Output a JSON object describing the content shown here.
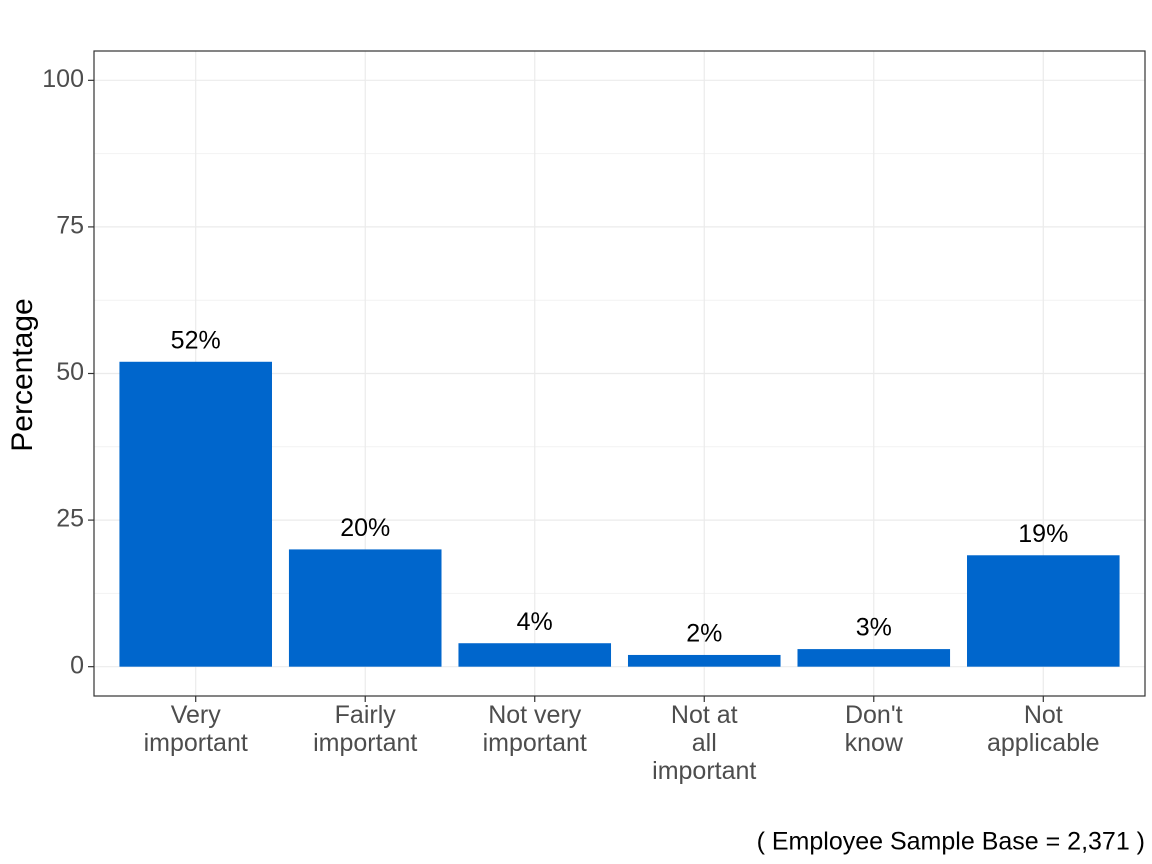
{
  "chart_data": {
    "type": "bar",
    "categories": [
      "Very\nimportant",
      "Fairly\nimportant",
      "Not very\nimportant",
      "Not at\nall\nimportant",
      "Don't\nknow",
      "Not\napplicable"
    ],
    "values": [
      52,
      20,
      4,
      2,
      3,
      19
    ],
    "value_labels": [
      "52%",
      "20%",
      "4%",
      "2%",
      "3%",
      "19%"
    ],
    "color": "#0066cc",
    "y_label": "Percentage",
    "caption": "( Employee Sample Base =  2,371 )",
    "ylim": [
      -5,
      105
    ],
    "yticks": [
      0,
      25,
      50,
      75,
      100
    ],
    "grid": true
  }
}
